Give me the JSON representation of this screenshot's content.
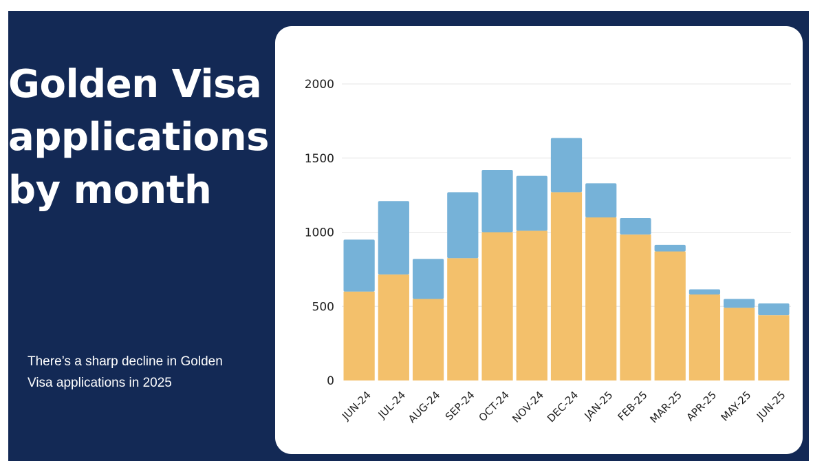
{
  "headline": "Golden Visa applications by month",
  "note": "There’s a sharp decline in Golden Visa applications in 2025",
  "colors": {
    "background": "#132955",
    "card": "#ffffff",
    "bottom_series": "#F3C06B",
    "top_series": "#76B2D8",
    "gridline": "#e6e6e6"
  },
  "chart_data": {
    "type": "bar",
    "stacked": true,
    "categories": [
      "JUN-24",
      "JUL-24",
      "AUG-24",
      "SEP-24",
      "OCT-24",
      "NOV-24",
      "DEC-24",
      "JAN-25",
      "FEB-25",
      "MAR-25",
      "APR-25",
      "MAY-25",
      "JUN-25"
    ],
    "series": [
      {
        "color": "#F3C06B",
        "values": [
          600,
          715,
          550,
          825,
          1000,
          1010,
          1270,
          1100,
          985,
          870,
          580,
          490,
          440
        ]
      },
      {
        "color": "#76B2D8",
        "values": [
          350,
          495,
          270,
          445,
          420,
          370,
          365,
          230,
          110,
          45,
          35,
          60,
          80
        ]
      }
    ],
    "ylim": [
      0,
      2000
    ],
    "yticks": [
      0,
      500,
      1000,
      1500,
      2000
    ],
    "grid": true,
    "legend": "none"
  }
}
